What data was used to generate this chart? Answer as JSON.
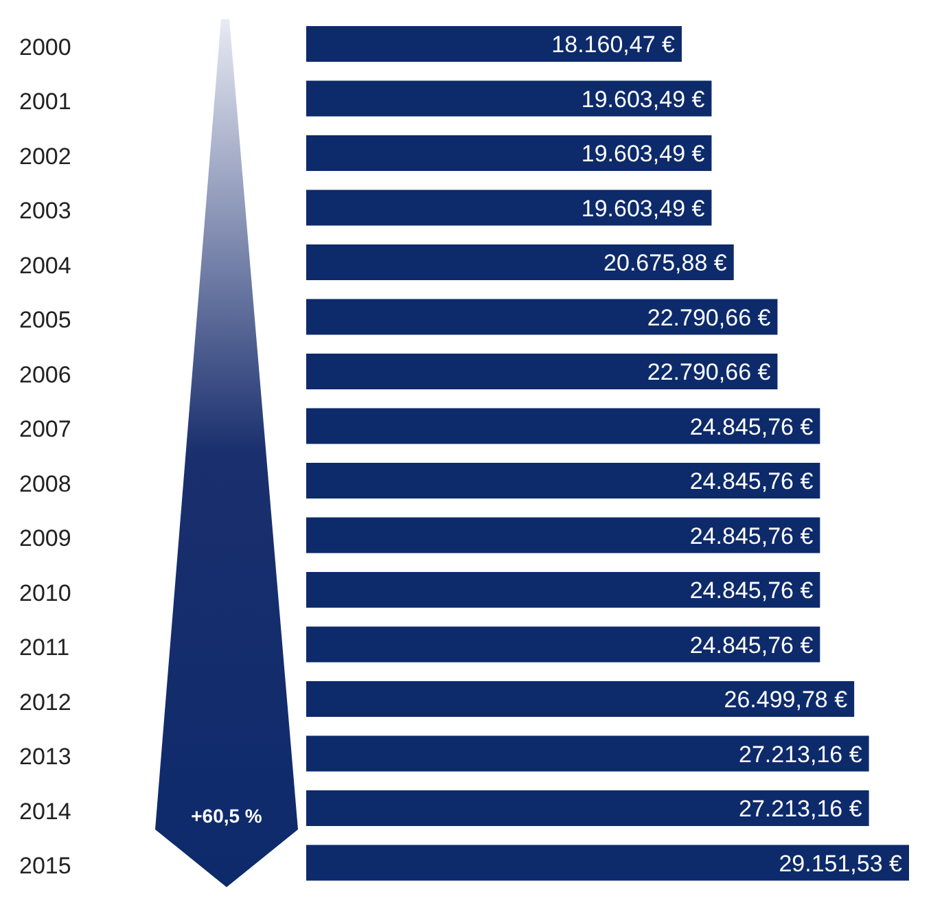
{
  "chart_data": {
    "type": "bar",
    "orientation": "horizontal",
    "categories": [
      "2000",
      "2001",
      "2002",
      "2003",
      "2004",
      "2005",
      "2006",
      "2007",
      "2008",
      "2009",
      "2010",
      "2011",
      "2012",
      "2013",
      "2014",
      "2015"
    ],
    "values": [
      18160.47,
      19603.49,
      19603.49,
      19603.49,
      20675.88,
      22790.66,
      22790.66,
      24845.76,
      24845.76,
      24845.76,
      24845.76,
      24845.76,
      26499.78,
      27213.16,
      27213.16,
      29151.53
    ],
    "value_labels": [
      "18.160,47 €",
      "19.603,49 €",
      "19.603,49 €",
      "19.603,49 €",
      "20.675,88 €",
      "22.790,66 €",
      "22.790,66 €",
      "24.845,76 €",
      "24.845,76 €",
      "24.845,76 €",
      "24.845,76 €",
      "24.845,76 €",
      "26.499,78 €",
      "27.213,16 €",
      "27.213,16 €",
      "29.151,53 €"
    ],
    "color": "#0d2a6b",
    "annotations": [
      "+60,5 %"
    ],
    "tick_labels": "y",
    "grid": false,
    "legend": false
  }
}
